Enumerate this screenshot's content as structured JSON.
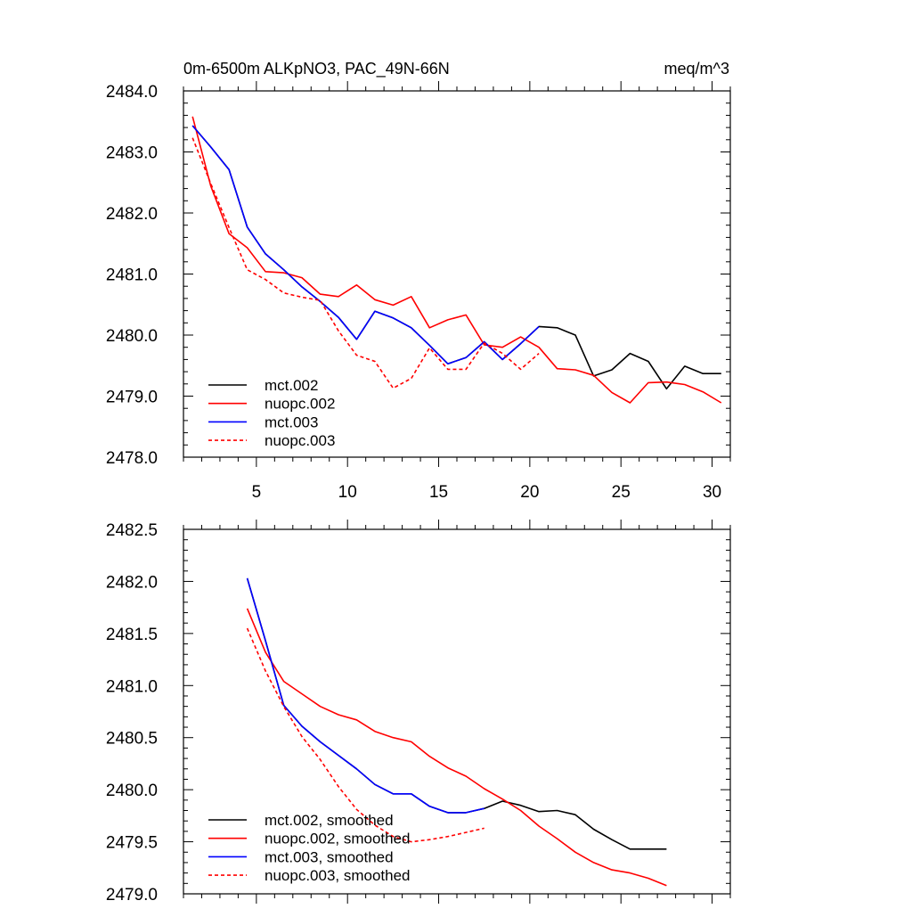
{
  "chart_data": [
    {
      "type": "line",
      "title": "0m-6500m ALKpNO3, PAC_49N-66N",
      "units": "meq/m^3",
      "xlim": [
        1,
        31
      ],
      "ylim": [
        2478.0,
        2484.0
      ],
      "xticks": [
        5,
        10,
        15,
        20,
        25,
        30
      ],
      "xtick_labels": [
        "5",
        "10",
        "15",
        "20",
        "25",
        "30"
      ],
      "yticks": [
        2478.0,
        2479.0,
        2480.0,
        2481.0,
        2482.0,
        2483.0,
        2484.0
      ],
      "ytick_labels": [
        "2478.0",
        "2479.0",
        "2480.0",
        "2481.0",
        "2482.0",
        "2483.0",
        "2484.0"
      ],
      "legend_position": "bottom-left",
      "series": [
        {
          "name": "mct.002",
          "color": "#000000",
          "dash": "solid",
          "x": [
            1.5,
            2.5,
            3.5,
            4.5,
            5.5,
            6.5,
            7.5,
            8.5,
            9.5,
            10.5,
            11.5,
            12.5,
            13.5,
            14.5,
            15.5,
            16.5,
            17.5,
            18.5,
            19.5,
            20.5,
            21.5,
            22.5,
            23.5,
            24.5,
            25.5,
            26.5,
            27.5,
            28.5,
            29.5,
            30.5
          ],
          "y": [
            2483.43,
            2483.08,
            2482.71,
            2481.77,
            2481.33,
            2481.07,
            2480.79,
            2480.55,
            2480.29,
            2479.93,
            2480.39,
            2480.28,
            2480.12,
            2479.83,
            2479.53,
            2479.63,
            2479.89,
            2479.6,
            2479.86,
            2480.14,
            2480.12,
            2480.0,
            2479.33,
            2479.43,
            2479.7,
            2479.57,
            2479.12,
            2479.49,
            2479.37,
            2479.37
          ]
        },
        {
          "name": "nuopc.002",
          "color": "#ff0000",
          "dash": "solid",
          "x": [
            1.5,
            2.5,
            3.5,
            4.5,
            5.5,
            6.5,
            7.5,
            8.5,
            9.5,
            10.5,
            11.5,
            12.5,
            13.5,
            14.5,
            15.5,
            16.5,
            17.5,
            18.5,
            19.5,
            20.5,
            21.5,
            22.5,
            23.5,
            24.5,
            25.5,
            26.5,
            27.5,
            28.5,
            29.5,
            30.5
          ],
          "y": [
            2483.58,
            2482.44,
            2481.66,
            2481.43,
            2481.04,
            2481.02,
            2480.94,
            2480.67,
            2480.63,
            2480.82,
            2480.58,
            2480.49,
            2480.63,
            2480.12,
            2480.25,
            2480.33,
            2479.84,
            2479.8,
            2479.97,
            2479.8,
            2479.45,
            2479.43,
            2479.34,
            2479.06,
            2478.89,
            2479.22,
            2479.23,
            2479.19,
            2479.07,
            2478.89
          ]
        },
        {
          "name": "mct.003",
          "color": "#0000ff",
          "dash": "solid",
          "x": [
            1.5,
            2.5,
            3.5,
            4.5,
            5.5,
            6.5,
            7.5,
            8.5,
            9.5,
            10.5,
            11.5,
            12.5,
            13.5,
            14.5,
            15.5,
            16.5,
            17.5,
            18.5,
            19.5,
            20.5
          ],
          "y": [
            2483.43,
            2483.08,
            2482.71,
            2481.77,
            2481.33,
            2481.07,
            2480.79,
            2480.55,
            2480.29,
            2479.93,
            2480.39,
            2480.28,
            2480.12,
            2479.83,
            2479.53,
            2479.63,
            2479.89,
            2479.6,
            2479.86,
            2480.14
          ]
        },
        {
          "name": "nuopc.003",
          "color": "#ff0000",
          "dash": "dashed",
          "x": [
            1.5,
            2.5,
            3.5,
            4.5,
            5.5,
            6.5,
            7.5,
            8.5,
            9.5,
            10.5,
            11.5,
            12.5,
            13.5,
            14.5,
            15.5,
            16.5,
            17.5,
            18.5,
            19.5,
            20.5
          ],
          "y": [
            2483.23,
            2482.48,
            2481.76,
            2481.07,
            2480.91,
            2480.69,
            2480.62,
            2480.57,
            2480.07,
            2479.67,
            2479.57,
            2479.13,
            2479.29,
            2479.79,
            2479.44,
            2479.44,
            2479.87,
            2479.7,
            2479.44,
            2479.7
          ]
        }
      ]
    },
    {
      "type": "line",
      "title": "",
      "xlim": [
        1,
        31
      ],
      "ylim": [
        2479.0,
        2482.5
      ],
      "xticks": [
        5,
        10,
        15,
        20,
        25,
        30
      ],
      "xtick_labels": [],
      "yticks": [
        2479.0,
        2479.5,
        2480.0,
        2480.5,
        2481.0,
        2481.5,
        2482.0,
        2482.5
      ],
      "ytick_labels": [
        "2479.0",
        "2479.5",
        "2480.0",
        "2480.5",
        "2481.0",
        "2481.5",
        "2482.0",
        "2482.5"
      ],
      "legend_position": "bottom-left",
      "series": [
        {
          "name": "mct.002, smoothed",
          "color": "#000000",
          "dash": "solid",
          "x": [
            4.5,
            5.5,
            6.5,
            7.5,
            8.5,
            9.5,
            10.5,
            11.5,
            12.5,
            13.5,
            14.5,
            15.5,
            16.5,
            17.5,
            18.5,
            19.5,
            20.5,
            21.5,
            22.5,
            23.5,
            24.5,
            25.5,
            26.5,
            27.5
          ],
          "y": [
            2482.03,
            2481.43,
            2480.81,
            2480.61,
            2480.46,
            2480.33,
            2480.2,
            2480.05,
            2479.96,
            2479.96,
            2479.84,
            2479.78,
            2479.78,
            2479.82,
            2479.89,
            2479.85,
            2479.79,
            2479.8,
            2479.76,
            2479.62,
            2479.52,
            2479.43,
            2479.43,
            2479.43
          ]
        },
        {
          "name": "nuopc.002, smoothed",
          "color": "#ff0000",
          "dash": "solid",
          "x": [
            4.5,
            5.5,
            6.5,
            7.5,
            8.5,
            9.5,
            10.5,
            11.5,
            12.5,
            13.5,
            14.5,
            15.5,
            16.5,
            17.5,
            18.5,
            19.5,
            20.5,
            21.5,
            22.5,
            23.5,
            24.5,
            25.5,
            26.5,
            27.5
          ],
          "y": [
            2481.74,
            2481.32,
            2481.04,
            2480.92,
            2480.8,
            2480.72,
            2480.67,
            2480.56,
            2480.5,
            2480.46,
            2480.32,
            2480.21,
            2480.13,
            2480.01,
            2479.91,
            2479.8,
            2479.65,
            2479.53,
            2479.4,
            2479.3,
            2479.23,
            2479.2,
            2479.15,
            2479.08
          ]
        },
        {
          "name": "mct.003, smoothed",
          "color": "#0000ff",
          "dash": "solid",
          "x": [
            4.5,
            5.5,
            6.5,
            7.5,
            8.5,
            9.5,
            10.5,
            11.5,
            12.5,
            13.5,
            14.5,
            15.5,
            16.5,
            17.5
          ],
          "y": [
            2482.03,
            2481.43,
            2480.81,
            2480.61,
            2480.46,
            2480.33,
            2480.2,
            2480.05,
            2479.96,
            2479.96,
            2479.84,
            2479.78,
            2479.78,
            2479.82
          ]
        },
        {
          "name": "nuopc.003, smoothed",
          "color": "#ff0000",
          "dash": "dashed",
          "x": [
            4.5,
            5.5,
            6.5,
            7.5,
            8.5,
            9.5,
            10.5,
            11.5,
            12.5,
            13.5,
            14.5,
            15.5,
            16.5,
            17.5
          ],
          "y": [
            2481.55,
            2481.14,
            2480.8,
            2480.51,
            2480.29,
            2480.03,
            2479.81,
            2479.66,
            2479.55,
            2479.5,
            2479.52,
            2479.55,
            2479.59,
            2479.63
          ]
        }
      ]
    }
  ]
}
